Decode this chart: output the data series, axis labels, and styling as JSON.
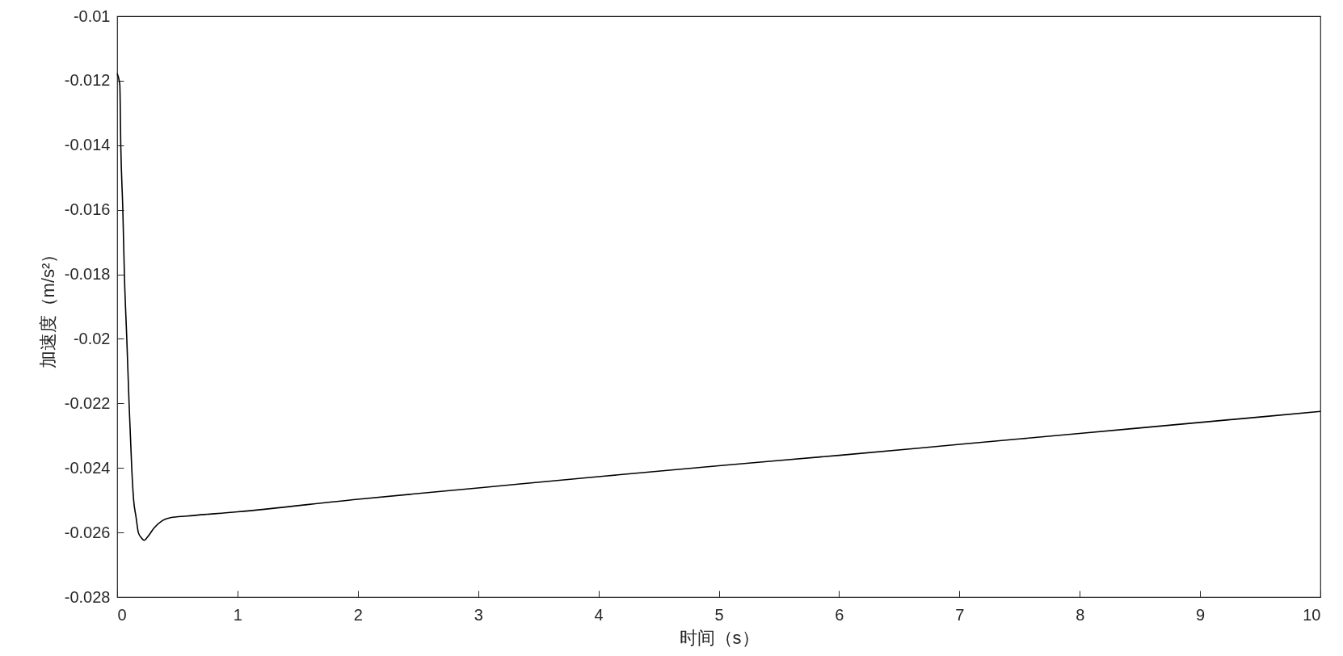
{
  "chart_data": {
    "type": "line",
    "xlabel": "时间（s）",
    "ylabel": "加速度（m/s²）",
    "x": [
      0,
      0.022,
      0.03,
      0.047,
      0.06,
      0.08,
      0.099,
      0.121,
      0.137,
      0.156,
      0.176,
      0.2,
      0.225,
      0.252,
      0.307,
      0.376,
      0.444,
      0.581,
      1,
      2,
      3,
      4,
      5,
      6,
      7,
      8,
      9,
      10
    ],
    "series": [
      {
        "color": "#000000",
        "values": [
          -0.01178,
          -0.01213,
          -0.014,
          -0.016,
          -0.018,
          -0.02,
          -0.022,
          -0.024,
          -0.025,
          -0.0255,
          -0.026,
          -0.02616,
          -0.02624,
          -0.02614,
          -0.02586,
          -0.02563,
          -0.02554,
          -0.02549,
          -0.02536,
          -0.02497,
          -0.02462,
          -0.02427,
          -0.02393,
          -0.02361,
          -0.02327,
          -0.02293,
          -0.02259,
          -0.02225
        ]
      }
    ],
    "xlim": [
      0,
      10
    ],
    "ylim": [
      -0.028,
      -0.01
    ],
    "xticks": [
      0,
      1,
      2,
      3,
      4,
      5,
      6,
      7,
      8,
      9,
      10
    ],
    "yticks": [
      -0.028,
      -0.026,
      -0.024,
      -0.022,
      -0.02,
      -0.018,
      -0.016,
      -0.014,
      -0.012,
      -0.01
    ],
    "grid": false,
    "marker": "none",
    "line_style": "solid"
  }
}
